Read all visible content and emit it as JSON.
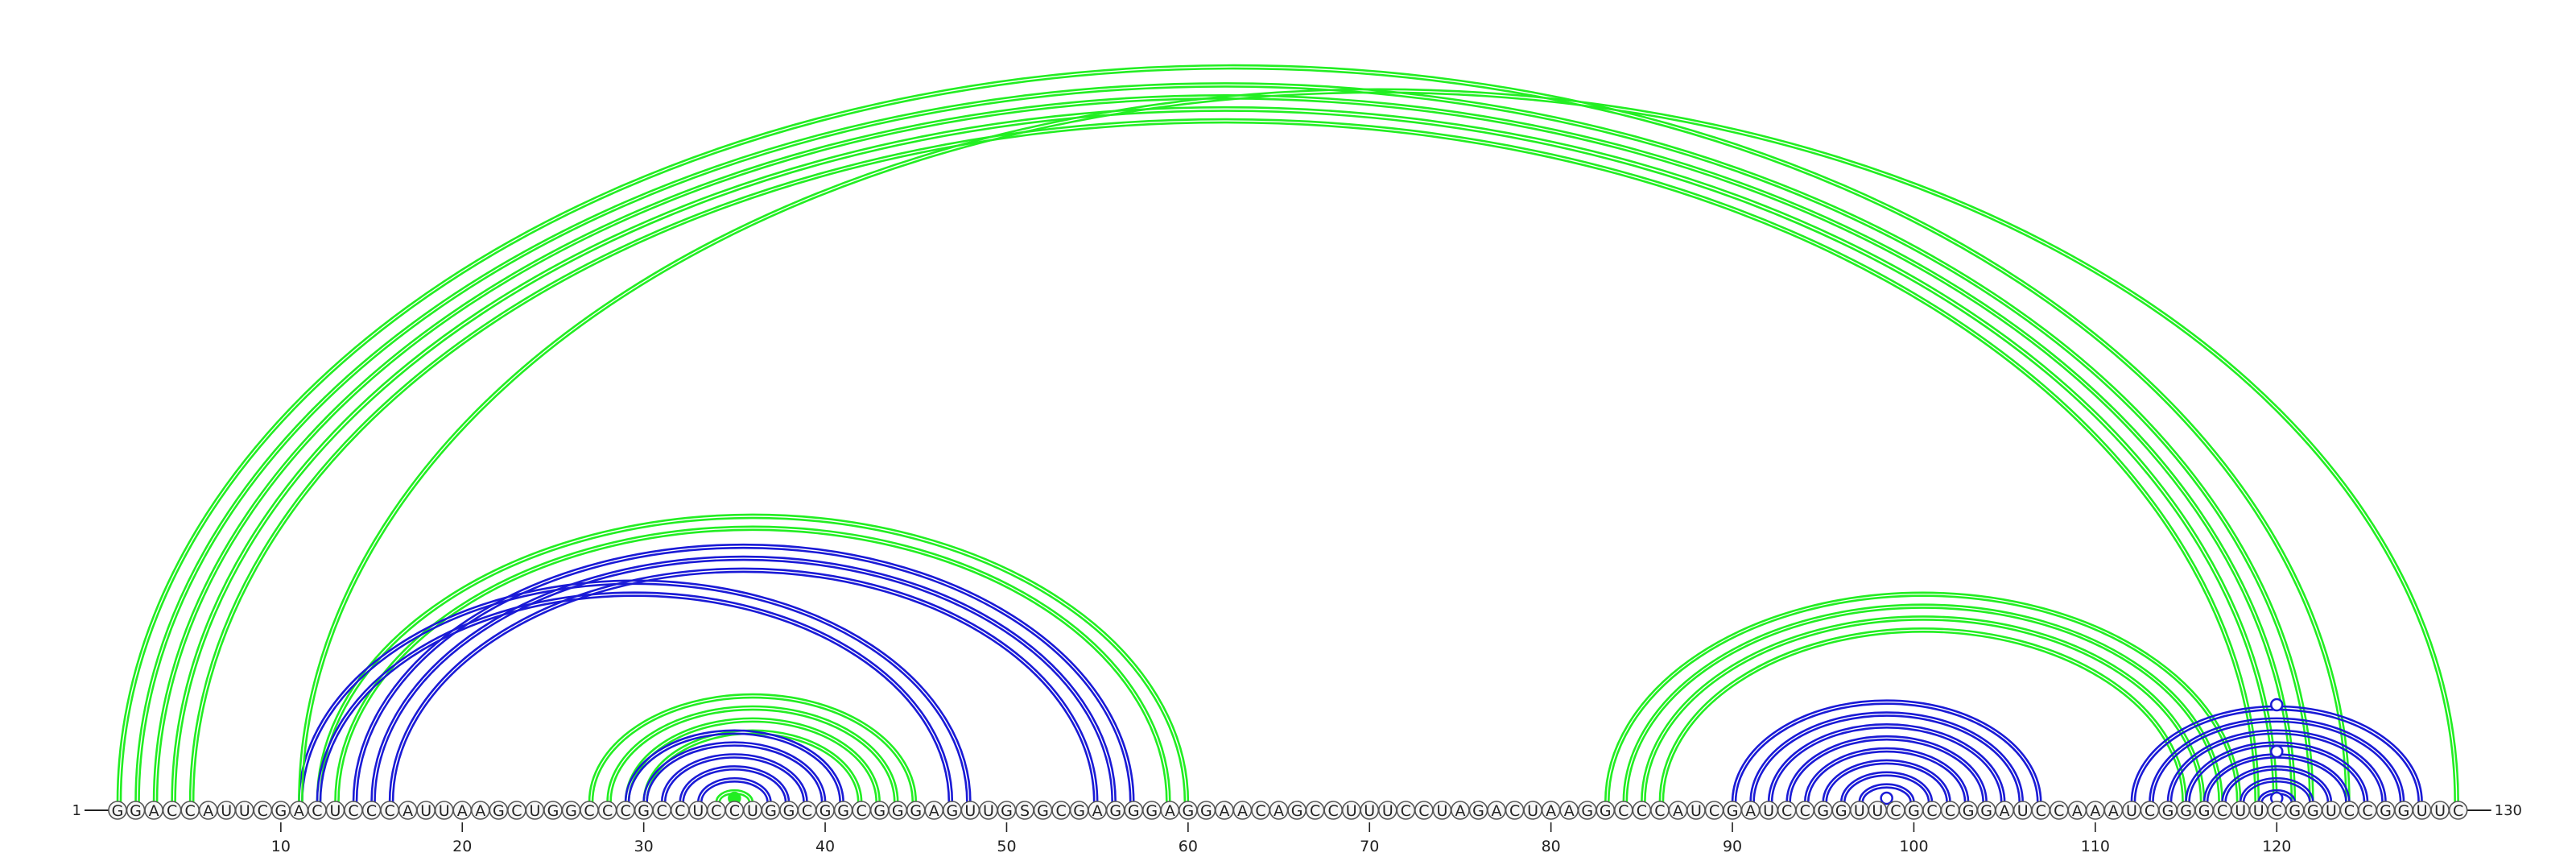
{
  "sequence": "GGACCAUUCGACUCCCAUUAAGCUGGCCCGCCUCCUGGCGGCGGGAGUUGSGCGAGGGAGGAACAGCCUUUCCUAGACUAAGGCCCAUCGAUCCGGUUCGCCGGAUCCAAAUCGGGCUUCGGUCCGGUUC",
  "start_label": "1",
  "end_label": "130",
  "ticks": [
    10,
    20,
    30,
    40,
    50,
    60,
    70,
    80,
    90,
    100,
    110,
    120
  ],
  "colors": {
    "green": "#22ee22",
    "blue": "#1a1ad6",
    "ink": "#222222",
    "nucleotide_fill": "#f7f7f7"
  },
  "arcs": [
    {
      "i": 1,
      "j": 124,
      "color": "green"
    },
    {
      "i": 2,
      "j": 122,
      "color": "green"
    },
    {
      "i": 3,
      "j": 121,
      "color": "green"
    },
    {
      "i": 4,
      "j": 120,
      "color": "green"
    },
    {
      "i": 5,
      "j": 119,
      "color": "green"
    },
    {
      "i": 12,
      "j": 60,
      "color": "green"
    },
    {
      "i": 13,
      "j": 59,
      "color": "green"
    },
    {
      "i": 11,
      "j": 48,
      "color": "blue"
    },
    {
      "i": 12,
      "j": 47,
      "color": "blue"
    },
    {
      "i": 14,
      "j": 57,
      "color": "blue"
    },
    {
      "i": 15,
      "j": 56,
      "color": "blue"
    },
    {
      "i": 16,
      "j": 55,
      "color": "blue"
    },
    {
      "i": 27,
      "j": 45,
      "color": "green"
    },
    {
      "i": 28,
      "j": 44,
      "color": "green"
    },
    {
      "i": 29,
      "j": 43,
      "color": "green"
    },
    {
      "i": 30,
      "j": 42,
      "color": "green"
    },
    {
      "i": 29,
      "j": 41,
      "color": "blue"
    },
    {
      "i": 30,
      "j": 40,
      "color": "blue"
    },
    {
      "i": 31,
      "j": 39,
      "color": "blue"
    },
    {
      "i": 32,
      "j": 38,
      "color": "blue"
    },
    {
      "i": 33,
      "j": 37,
      "color": "blue"
    },
    {
      "i": 34,
      "j": 36,
      "color": "green"
    },
    {
      "i": 83,
      "j": 118,
      "color": "green"
    },
    {
      "i": 84,
      "j": 117,
      "color": "green"
    },
    {
      "i": 85,
      "j": 116,
      "color": "green"
    },
    {
      "i": 86,
      "j": 115,
      "color": "green"
    },
    {
      "i": 90,
      "j": 107,
      "color": "blue"
    },
    {
      "i": 91,
      "j": 106,
      "color": "blue"
    },
    {
      "i": 92,
      "j": 105,
      "color": "blue"
    },
    {
      "i": 93,
      "j": 104,
      "color": "blue"
    },
    {
      "i": 94,
      "j": 103,
      "color": "blue"
    },
    {
      "i": 95,
      "j": 102,
      "color": "blue"
    },
    {
      "i": 96,
      "j": 101,
      "color": "blue"
    },
    {
      "i": 97,
      "j": 100,
      "color": "blue"
    },
    {
      "i": 112,
      "j": 128,
      "color": "blue"
    },
    {
      "i": 113,
      "j": 127,
      "color": "blue"
    },
    {
      "i": 114,
      "j": 126,
      "color": "blue"
    },
    {
      "i": 115,
      "j": 125,
      "color": "blue"
    },
    {
      "i": 116,
      "j": 124,
      "color": "blue"
    },
    {
      "i": 117,
      "j": 123,
      "color": "blue"
    },
    {
      "i": 118,
      "j": 122,
      "color": "blue"
    },
    {
      "i": 119,
      "j": 121,
      "color": "blue"
    },
    {
      "i": 11,
      "j": 130,
      "color": "green"
    }
  ],
  "markers": [
    {
      "pos": 35,
      "style": "filled",
      "color": "green",
      "level": 1
    },
    {
      "pos": 98.5,
      "style": "open",
      "color": "blue",
      "level": 1
    },
    {
      "pos": 120,
      "style": "open",
      "color": "blue",
      "level": 1
    },
    {
      "pos": 120,
      "style": "open",
      "color": "blue",
      "level": 3
    },
    {
      "pos": 120,
      "style": "open",
      "color": "blue",
      "level": 5
    }
  ]
}
